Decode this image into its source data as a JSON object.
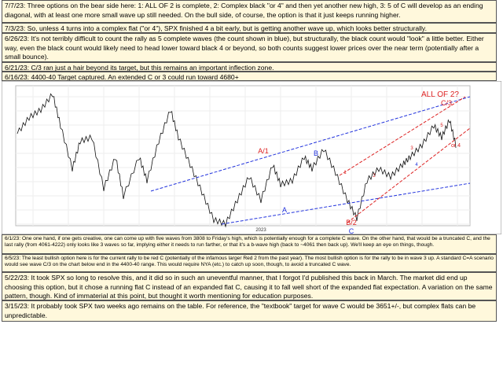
{
  "notes_top": [
    "7/7/23:  Three options on the bear side here:  1: ALL OF 2 is complete, 2: Complex black \"or 4\" and then yet another new high, 3: 5 of C will develop as an ending diagonal, with at least one more small wave up still needed.  On the bull side, of course, the option is that it just keeps running higher.",
    "7/3/23:  So, unless 4 turns into a complex flat (\"or 4\"), SPX finished 4 a bit early, but is getting another wave up, which looks better structurally.",
    "6/26/23:  It's not terribly difficult to count the rally as 5 complete waves (the count shown in blue), but structurally, the black count would \"look\" a little better.  Either way, even the black count would likely need to head lower toward black 4 or beyond, so both counts suggest lower prices over the near term (potentially after a small bounce).",
    "6/21/23:  C/3 ran just a hair beyond its target, but this remains an important inflection zone.",
    "6/16/23:  4400-40 Target captured.  An extended C or 3 could run toward 4680+"
  ],
  "notes_bottom": [
    "6/1/23:  One one hand, if one gets creative, one can come up with five waves from 3808 to Friday's high, which is potentially enough for a complete C wave.  On the other hand, that would be a truncated C, and the last rally (from 4061-4222) only looks like 3 waves so far, implying either it needs to run farther, or that it's a b-wave high (back to ~4061 then back up).  We'll keep an eye on things, though.",
    "6/5/23:  The least bullish option here is for the current rally to be red C (potentially of the infamous larger Red 2 from the past year).  The most bullish option is for the rally to be in wave 3 up.  A standard C=A scenario would see wave C/3 on the chart below end in the 4400-40 range.  This would require NYA (etc.) to catch up soon, though, to avoid a truncated C wave.",
    "5/22/23:  It took SPX so long to resolve this, and it did so in such an uneventful manner, that I forgot I'd published this back in March.  The market did end up choosing this option, but it chose a running flat C instead of an expanded flat C, causing it to fall well short of the expanded flat expectation.  A variation on the same pattern, though.  Kind of immaterial at this point, but thought it worth mentioning for education purposes.",
    "3/15/23:  It probably took SPX two weeks ago remains on the table.  For reference, the \"textbook\" target for wave C would be 3651+/-, but complex flats can be unpredictable."
  ],
  "labels": {
    "all2": "ALL OF 2?",
    "c3": "C/3",
    "a1": "A/1",
    "b": "B",
    "a": "A",
    "c": "C",
    "b2": "B/2",
    "or4": "or 4",
    "w1": "1",
    "w2": "2",
    "w3": "3",
    "w4": "4",
    "w5": "5",
    "year": "2023"
  }
}
